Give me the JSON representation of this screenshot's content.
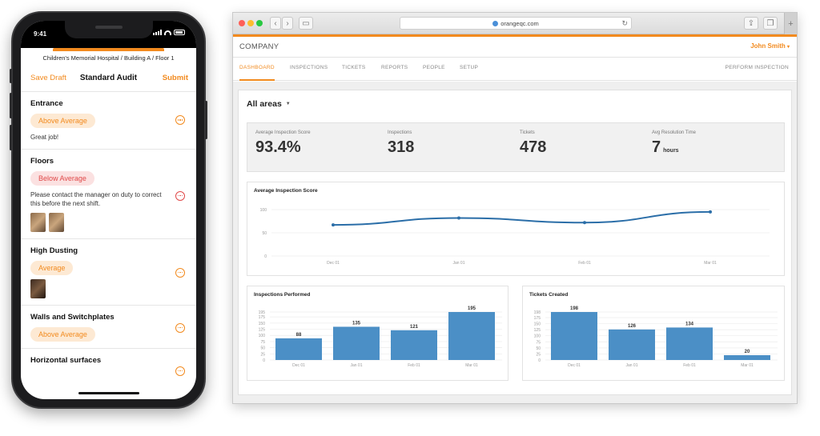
{
  "phone": {
    "status_time": "9:41",
    "location": "Children's Memorial Hospital / Building A / Floor 1",
    "save_draft": "Save Draft",
    "title": "Standard Audit",
    "submit": "Submit",
    "accent_color": "#f28a1e",
    "items": [
      {
        "title": "Entrance",
        "rating": "Above Average",
        "note": "Great job!"
      },
      {
        "title": "Floors",
        "rating": "Below Average",
        "note": "Please contact the manager on duty to correct this before the next shift."
      },
      {
        "title": "High Dusting",
        "rating": "Average"
      },
      {
        "title": "Walls and Switchplates",
        "rating": "Above Average"
      },
      {
        "title": "Horizontal surfaces"
      }
    ]
  },
  "browser": {
    "url": "orangeqc.com",
    "company": "COMPANY",
    "user": "John Smith",
    "tabs": [
      "DASHBOARD",
      "INSPECTIONS",
      "TICKETS",
      "REPORTS",
      "PEOPLE",
      "SETUP"
    ],
    "active_tab": "DASHBOARD",
    "perform_inspection": "PERFORM INSPECTION"
  },
  "dashboard": {
    "area_filter": "All areas",
    "stats": [
      {
        "label": "Average Inspection Score",
        "value": "93.4%"
      },
      {
        "label": "Inspections",
        "value": "318"
      },
      {
        "label": "Tickets",
        "value": "478"
      },
      {
        "label": "Avg Resolution Time",
        "value": "7",
        "unit": "hours"
      }
    ],
    "bar_color": "#4b8fc6",
    "line_color": "#2b6ea8"
  },
  "chart_data": [
    {
      "type": "line",
      "title": "Average Inspection Score",
      "categories": [
        "Dec 01",
        "Jan 01",
        "Feb 01",
        "Mar 01"
      ],
      "values": [
        67,
        82,
        72,
        95
      ],
      "y_ticks": [
        0,
        50,
        100
      ],
      "ylim": [
        0,
        100
      ],
      "grid": true
    },
    {
      "type": "bar",
      "title": "Inspections Performed",
      "categories": [
        "Dec 01",
        "Jan 01",
        "Feb 01",
        "Mar 01"
      ],
      "values": [
        88,
        135,
        121,
        195
      ],
      "y_ticks": [
        0,
        25,
        50,
        75,
        100,
        125,
        150,
        175,
        195
      ],
      "ylim": [
        0,
        195
      ],
      "grid": true
    },
    {
      "type": "bar",
      "title": "Tickets Created",
      "categories": [
        "Dec 01",
        "Jan 01",
        "Feb 01",
        "Mar 01"
      ],
      "values": [
        198,
        126,
        134,
        20
      ],
      "y_ticks": [
        0,
        25,
        50,
        75,
        100,
        125,
        150,
        175,
        198
      ],
      "ylim": [
        0,
        198
      ],
      "grid": true
    }
  ]
}
